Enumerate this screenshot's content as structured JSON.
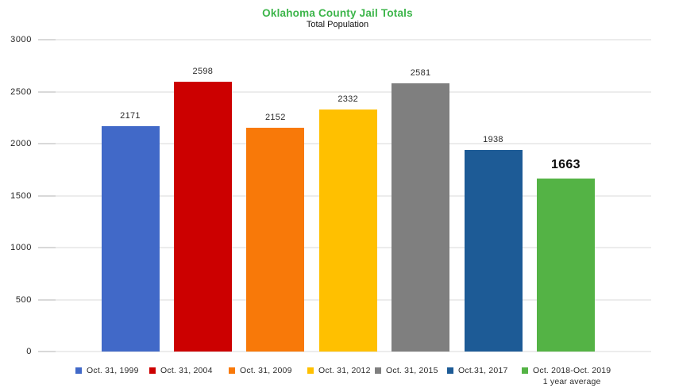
{
  "header": {
    "title": "Oklahoma County Jail Totals",
    "subtitle": "Total Population"
  },
  "colors": {
    "title_green": "#3cb54a",
    "gridline": "#ececec",
    "tick": "#d9d9d9",
    "value_label": "#2b2b2b",
    "emphasis_label": "#0d0d0d"
  },
  "chart_data": {
    "type": "bar",
    "title": "Oklahoma County Jail Totals",
    "subtitle": "Total Population",
    "categories": [
      "Oct. 31, 1999",
      "Oct. 31, 2004",
      "Oct. 31, 2009",
      "Oct. 31, 2012",
      "Oct. 31, 2015",
      "Oct.31, 2017",
      "Oct. 2018-Oct. 2019"
    ],
    "values": [
      2171,
      2598,
      2152,
      2332,
      2581,
      1938,
      1663
    ],
    "bar_colors": [
      "#4169c8",
      "#cc0000",
      "#f87909",
      "#ffc000",
      "#7f7f7f",
      "#1d5b96",
      "#54b345"
    ],
    "value_labels": [
      "2171",
      "2598",
      "2152",
      "2332",
      "2581",
      "1938",
      "1663"
    ],
    "emphasized_index": 6,
    "legend_note_last": "1 year average",
    "xlabel": "",
    "ylabel": "",
    "ylim": [
      0,
      3000
    ],
    "yticks": [
      0,
      500,
      1000,
      1500,
      2000,
      2500,
      3000
    ],
    "ytick_labels": [
      "0",
      "500",
      "1000",
      "1500",
      "2000",
      "2500",
      "3000"
    ],
    "grid": true,
    "legend_position": "bottom"
  }
}
